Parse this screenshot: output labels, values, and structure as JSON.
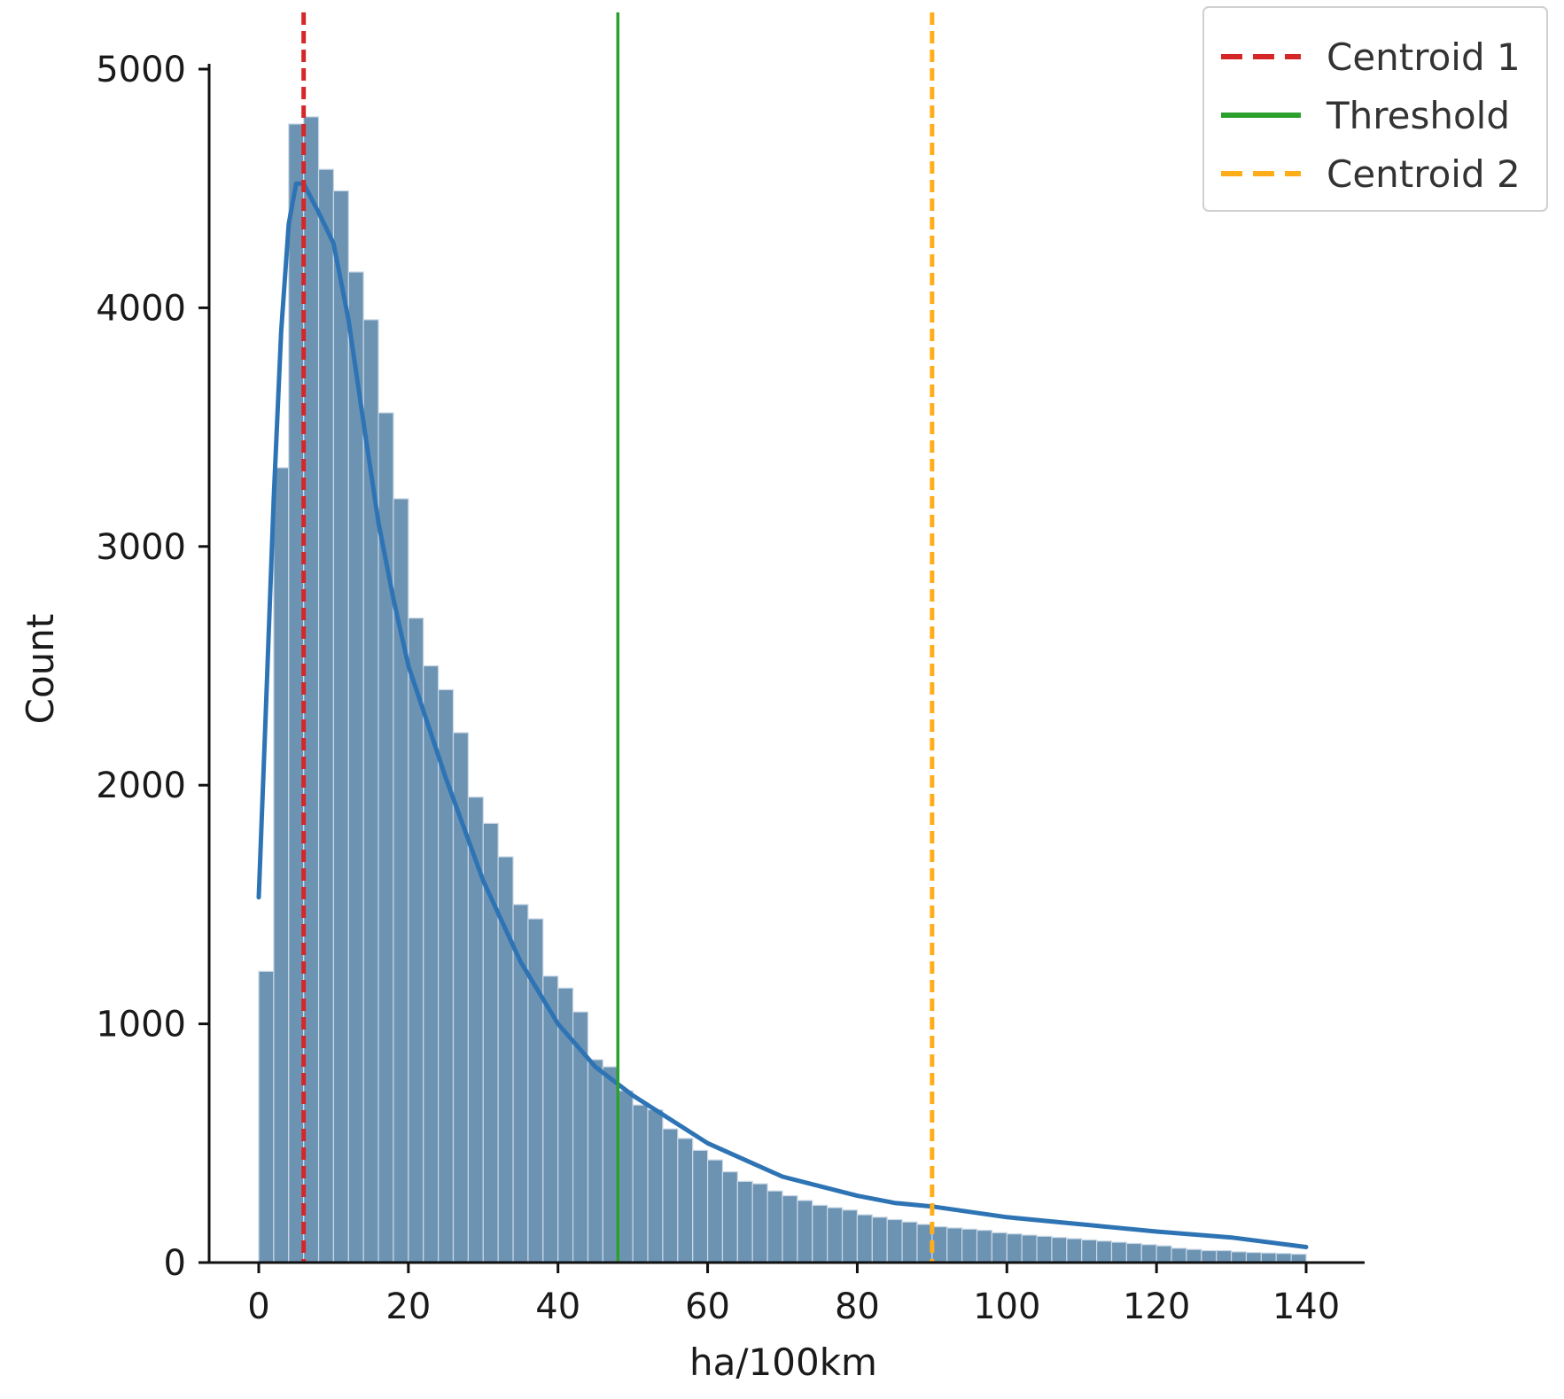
{
  "chart_data": {
    "type": "histogram",
    "xlabel": "ha/100km",
    "ylabel": "Count",
    "xlim": [
      -7,
      148
    ],
    "ylim": [
      0,
      5000
    ],
    "x_ticks": [
      0,
      20,
      40,
      60,
      80,
      100,
      120,
      140
    ],
    "y_ticks": [
      0,
      1000,
      2000,
      3000,
      4000,
      5000
    ],
    "bin_width": 2,
    "bins_start": 0,
    "counts": [
      1220,
      3330,
      4770,
      4800,
      4580,
      4490,
      4150,
      3950,
      3560,
      3200,
      2700,
      2500,
      2400,
      2220,
      1950,
      1840,
      1700,
      1500,
      1440,
      1200,
      1150,
      1050,
      850,
      820,
      720,
      660,
      640,
      560,
      520,
      470,
      430,
      380,
      340,
      330,
      300,
      280,
      260,
      240,
      230,
      220,
      200,
      190,
      180,
      170,
      160,
      150,
      145,
      140,
      135,
      125,
      120,
      115,
      110,
      105,
      100,
      95,
      90,
      85,
      80,
      75,
      70,
      60,
      55,
      50,
      50,
      45,
      42,
      40,
      38,
      35
    ],
    "kde": {
      "x": [
        0,
        1,
        2,
        3,
        4,
        5,
        6,
        8,
        10,
        12,
        14,
        16,
        18,
        20,
        25,
        30,
        35,
        40,
        45,
        50,
        55,
        60,
        65,
        70,
        75,
        80,
        85,
        90,
        100,
        110,
        120,
        130,
        140
      ],
      "y": [
        1530,
        2350,
        3200,
        3900,
        4350,
        4520,
        4520,
        4400,
        4270,
        3950,
        3520,
        3100,
        2780,
        2500,
        2030,
        1600,
        1260,
        1000,
        820,
        700,
        600,
        500,
        430,
        360,
        320,
        280,
        250,
        235,
        190,
        160,
        130,
        105,
        65
      ]
    },
    "color_bars": "#6d93b3",
    "color_kde": "#2e74b5",
    "reference_lines": [
      {
        "name": "Centroid 1",
        "x": 6,
        "style": "dashed",
        "color": "#d62728"
      },
      {
        "name": "Threshold",
        "x": 48,
        "style": "solid",
        "color": "#2ca02c"
      },
      {
        "name": "Centroid 2",
        "x": 90,
        "style": "dashed",
        "color": "#ffae1a"
      }
    ],
    "legend_position": "top-right",
    "grid": false
  }
}
